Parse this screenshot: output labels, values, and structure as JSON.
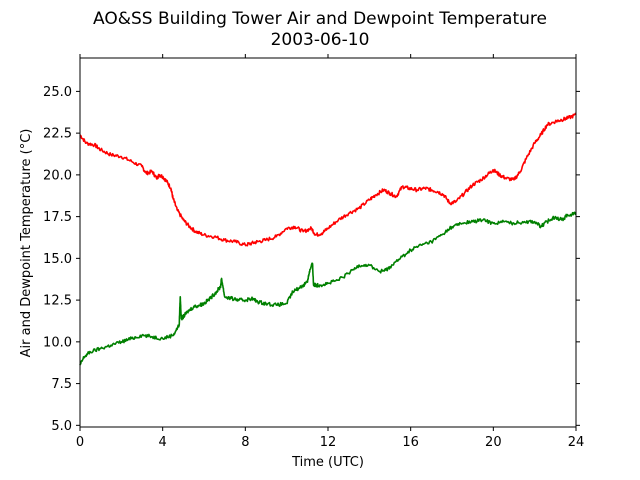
{
  "chart_data": {
    "type": "line",
    "title": "AO&SS Building Tower Air and Dewpoint Temperature",
    "subtitle": "2003-06-10",
    "xlabel": "Time (UTC)",
    "ylabel": "Air and Dewpoint Temperature (°C)",
    "xlim": [
      0,
      24
    ],
    "ylim": [
      4.9,
      27.0
    ],
    "xticks": [
      0,
      4,
      8,
      12,
      16,
      20,
      24
    ],
    "xtick_labels": [
      "0",
      "4",
      "8",
      "12",
      "16",
      "20",
      "24"
    ],
    "yticks": [
      5.0,
      7.5,
      10.0,
      12.5,
      15.0,
      17.5,
      20.0,
      22.5,
      25.0
    ],
    "ytick_labels": [
      "5.0",
      "7.5",
      "10.0",
      "12.5",
      "15.0",
      "17.5",
      "20.0",
      "22.5",
      "25.0"
    ],
    "grid": false,
    "series": [
      {
        "color": "#ff0000",
        "x": [
          0,
          0.3,
          0.7,
          1.0,
          1.5,
          2.0,
          2.5,
          3.0,
          3.2,
          3.5,
          3.7,
          3.85,
          4.0,
          4.2,
          4.4,
          4.5,
          4.7,
          5.0,
          5.3,
          5.6,
          6.0,
          6.5,
          7.0,
          7.5,
          8.0,
          8.3,
          8.6,
          9.0,
          9.5,
          10.0,
          10.4,
          10.8,
          11.2,
          11.4,
          11.7,
          12.0,
          12.5,
          13.0,
          13.5,
          14.0,
          14.3,
          14.7,
          15.0,
          15.3,
          15.6,
          15.9,
          16.3,
          16.7,
          17.0,
          17.3,
          17.6,
          17.9,
          18.2,
          18.6,
          19.0,
          19.4,
          19.8,
          20.0,
          20.3,
          20.6,
          21.0,
          21.3,
          21.6,
          22.0,
          22.3,
          22.6,
          23.0,
          23.3,
          23.6,
          24.0
        ],
        "values": [
          22.4,
          21.9,
          21.8,
          21.5,
          21.2,
          21.1,
          20.8,
          20.5,
          20.1,
          20.2,
          19.8,
          20.0,
          19.9,
          19.6,
          19.2,
          18.6,
          17.9,
          17.3,
          16.9,
          16.6,
          16.4,
          16.3,
          16.1,
          16.0,
          15.8,
          15.9,
          16.0,
          16.1,
          16.3,
          16.8,
          16.9,
          16.6,
          16.8,
          16.4,
          16.5,
          16.8,
          17.3,
          17.7,
          18.0,
          18.5,
          18.8,
          19.1,
          18.9,
          18.7,
          19.3,
          19.2,
          19.1,
          19.2,
          19.1,
          19.0,
          18.8,
          18.3,
          18.4,
          18.9,
          19.4,
          19.7,
          20.1,
          20.3,
          20.0,
          19.8,
          19.7,
          20.2,
          21.0,
          21.9,
          22.4,
          23.0,
          23.2,
          23.3,
          23.4,
          23.6
        ]
      },
      {
        "color": "#008000",
        "x": [
          0,
          0.2,
          0.5,
          1.0,
          1.5,
          2.0,
          2.5,
          3.0,
          3.5,
          4.0,
          4.5,
          4.8,
          4.85,
          4.9,
          5.0,
          5.2,
          5.5,
          5.8,
          6.0,
          6.3,
          6.6,
          6.8,
          6.85,
          7.0,
          7.3,
          7.7,
          8.0,
          8.3,
          8.6,
          9.0,
          9.5,
          10.0,
          10.3,
          10.7,
          11.0,
          11.1,
          11.25,
          11.3,
          11.4,
          11.6,
          12.0,
          12.5,
          13.0,
          13.5,
          14.0,
          14.5,
          14.8,
          15.0,
          15.5,
          16.0,
          16.5,
          17.0,
          17.5,
          18.0,
          18.5,
          19.0,
          19.5,
          20.0,
          20.5,
          21.0,
          21.5,
          22.0,
          22.3,
          22.6,
          23.0,
          23.3,
          23.6,
          24.0
        ],
        "values": [
          8.6,
          9.1,
          9.4,
          9.6,
          9.8,
          10.0,
          10.2,
          10.4,
          10.3,
          10.2,
          10.4,
          11.0,
          12.7,
          11.4,
          11.5,
          11.8,
          12.1,
          12.2,
          12.3,
          12.6,
          13.0,
          13.3,
          13.8,
          12.7,
          12.6,
          12.5,
          12.5,
          12.6,
          12.4,
          12.3,
          12.2,
          12.3,
          13.0,
          13.3,
          13.6,
          14.2,
          14.7,
          13.4,
          13.4,
          13.4,
          13.5,
          13.7,
          14.1,
          14.6,
          14.6,
          14.2,
          14.3,
          14.5,
          15.0,
          15.5,
          15.8,
          16.0,
          16.4,
          16.9,
          17.1,
          17.2,
          17.3,
          17.1,
          17.2,
          17.1,
          17.2,
          17.2,
          16.9,
          17.2,
          17.5,
          17.3,
          17.6,
          17.7
        ]
      }
    ]
  }
}
